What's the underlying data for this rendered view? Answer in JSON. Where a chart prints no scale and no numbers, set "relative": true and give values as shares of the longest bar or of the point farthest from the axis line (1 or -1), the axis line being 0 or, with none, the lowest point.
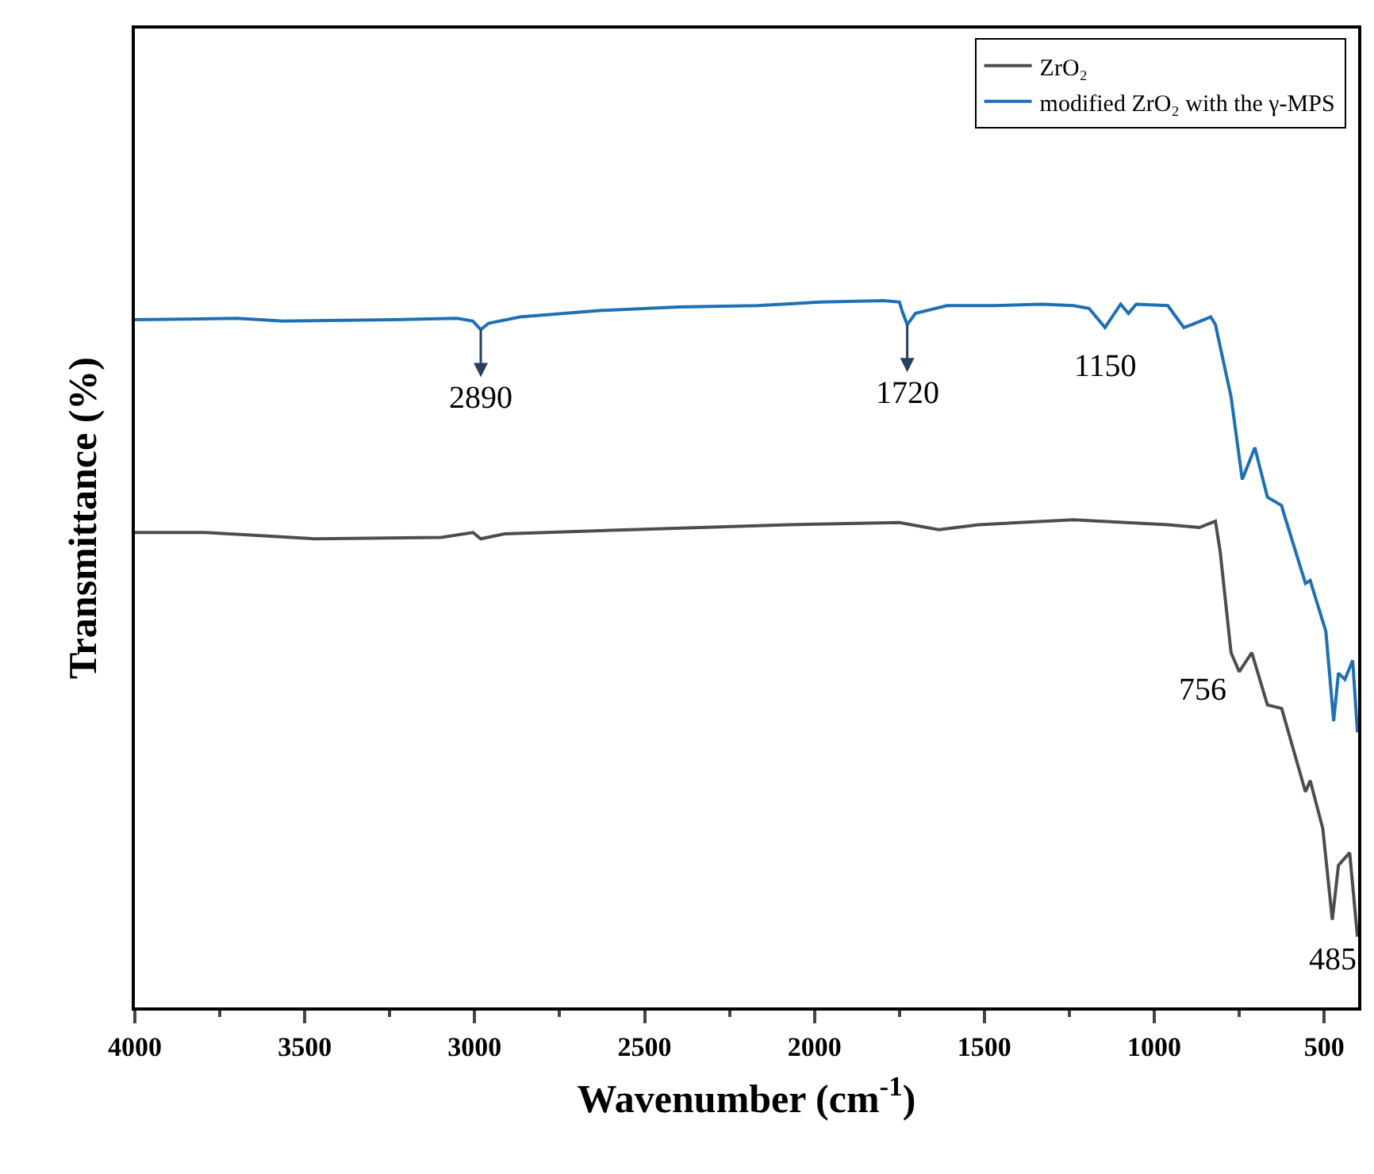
{
  "chart_data": {
    "type": "line",
    "relative": true,
    "xlabel": "Wavenumber (cm$^{-1}$)",
    "ylabel": "Transmittance (%)",
    "xlim": [
      4000,
      400
    ],
    "xticks": [
      4000,
      3500,
      3000,
      2500,
      2000,
      1500,
      1000,
      500
    ],
    "tick_labels": "x",
    "legend": "top right",
    "marker": "none",
    "line_style": "solid",
    "series": [
      {
        "name": "ZrO₂",
        "color": "#4d4d4d",
        "x": [
          4000,
          3795,
          3609,
          3470,
          3098,
          3005,
          2982,
          2912,
          2540,
          2075,
          1750,
          1634,
          1517,
          1238,
          960,
          867,
          820,
          806,
          774,
          750,
          713,
          667,
          625,
          555,
          541,
          504,
          476,
          458,
          425,
          402
        ],
        "values": [
          0.672,
          0.672,
          0.667,
          0.663,
          0.665,
          0.672,
          0.663,
          0.67,
          0.676,
          0.683,
          0.686,
          0.676,
          0.683,
          0.69,
          0.683,
          0.679,
          0.688,
          0.645,
          0.502,
          0.475,
          0.502,
          0.428,
          0.423,
          0.305,
          0.321,
          0.253,
          0.124,
          0.201,
          0.219,
          0.1
        ]
      },
      {
        "name": "modified ZrO₂ with the γ-MPS",
        "color": "#1f6fb5",
        "x": [
          4000,
          3702,
          3563,
          3238,
          3052,
          3005,
          2982,
          2959,
          2866,
          2633,
          2401,
          2168,
          1982,
          1796,
          1750,
          1741,
          1727,
          1703,
          1610,
          1471,
          1331,
          1238,
          1192,
          1145,
          1099,
          1076,
          1053,
          960,
          936,
          913,
          890,
          834,
          820,
          774,
          741,
          704,
          667,
          625,
          620,
          555,
          541,
          495,
          472,
          458,
          439,
          416,
          402
        ],
        "values": [
          0.973,
          0.975,
          0.971,
          0.973,
          0.975,
          0.971,
          0.959,
          0.968,
          0.977,
          0.986,
          0.991,
          0.993,
          0.998,
          1.0,
          0.998,
          0.984,
          0.966,
          0.982,
          0.993,
          0.993,
          0.995,
          0.993,
          0.989,
          0.962,
          0.995,
          0.982,
          0.995,
          0.993,
          0.977,
          0.962,
          0.966,
          0.977,
          0.966,
          0.864,
          0.747,
          0.792,
          0.722,
          0.71,
          0.701,
          0.6,
          0.604,
          0.532,
          0.405,
          0.473,
          0.464,
          0.491,
          0.389
        ]
      }
    ],
    "annotations": [
      {
        "text": "2890",
        "x": 2982,
        "y": 0.959
      },
      {
        "text": "1720",
        "x": 1727,
        "y": 0.966
      },
      {
        "text": "1150",
        "x": 1145,
        "y": 0.962
      },
      {
        "text": "756",
        "x": 750,
        "y": 0.475
      },
      {
        "text": "485",
        "x": 476,
        "y": 0.124
      }
    ]
  }
}
